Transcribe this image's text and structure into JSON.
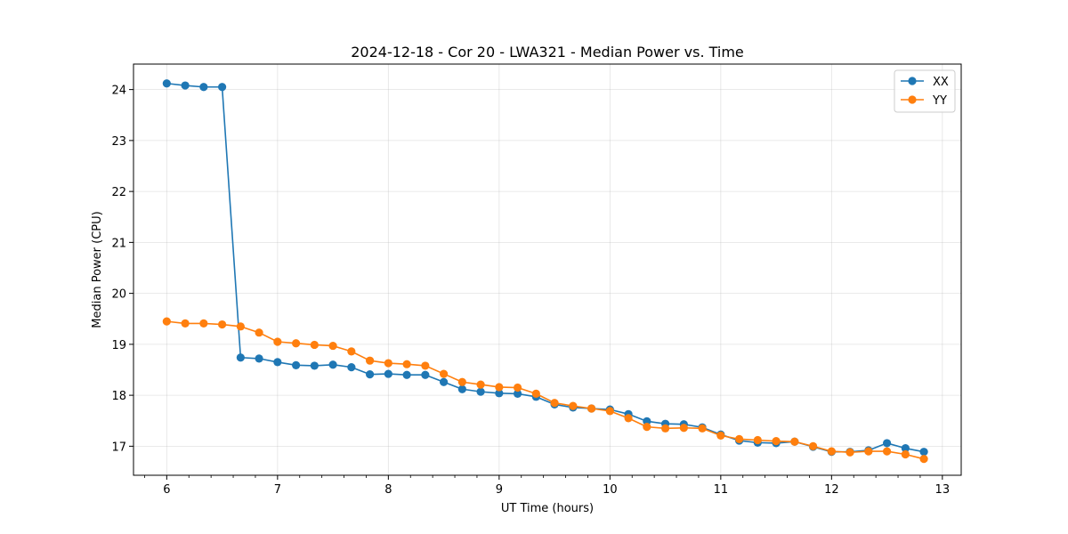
{
  "chart_data": {
    "type": "line",
    "title": "2024-12-18 - Cor 20 - LWA321 - Median Power vs. Time",
    "xlabel": "UT Time (hours)",
    "ylabel": "Median Power (CPU)",
    "xlim": [
      5.7,
      13.17
    ],
    "ylim": [
      16.43,
      24.5
    ],
    "xticks": [
      6,
      7,
      8,
      9,
      10,
      11,
      12,
      13
    ],
    "xtick_labels": [
      "6",
      "7",
      "8",
      "9",
      "10",
      "11",
      "12",
      "13"
    ],
    "yticks": [
      17,
      18,
      19,
      20,
      21,
      22,
      23,
      24
    ],
    "ytick_labels": [
      "17",
      "18",
      "19",
      "20",
      "21",
      "22",
      "23",
      "24"
    ],
    "grid": true,
    "legend_position": "top-right",
    "x": [
      6.0,
      6.1667,
      6.3333,
      6.5,
      6.6667,
      6.8333,
      7.0,
      7.1667,
      7.3333,
      7.5,
      7.6667,
      7.8333,
      8.0,
      8.1667,
      8.3333,
      8.5,
      8.6667,
      8.8333,
      9.0,
      9.1667,
      9.3333,
      9.5,
      9.6667,
      9.8333,
      10.0,
      10.1667,
      10.3333,
      10.5,
      10.6667,
      10.8333,
      11.0,
      11.1667,
      11.3333,
      11.5,
      11.6667,
      11.8333,
      12.0,
      12.1667,
      12.3333,
      12.5,
      12.6667,
      12.8333
    ],
    "series": [
      {
        "name": "XX",
        "color": "#1f77b4",
        "values": [
          24.12,
          24.08,
          24.05,
          24.05,
          18.74,
          18.72,
          18.65,
          18.59,
          18.58,
          18.6,
          18.55,
          18.41,
          18.42,
          18.4,
          18.4,
          18.26,
          18.12,
          18.07,
          18.04,
          18.03,
          17.97,
          17.82,
          17.76,
          17.74,
          17.72,
          17.63,
          17.49,
          17.44,
          17.43,
          17.37,
          17.23,
          17.11,
          17.07,
          17.06,
          17.09,
          16.99,
          16.89,
          16.89,
          16.92,
          17.06,
          16.96,
          16.89
        ]
      },
      {
        "name": "YY",
        "color": "#ff7f0e",
        "values": [
          19.45,
          19.41,
          19.41,
          19.39,
          19.35,
          19.23,
          19.05,
          19.02,
          18.99,
          18.97,
          18.86,
          18.68,
          18.63,
          18.61,
          18.58,
          18.42,
          18.26,
          18.21,
          18.16,
          18.15,
          18.03,
          17.85,
          17.79,
          17.74,
          17.69,
          17.55,
          17.38,
          17.35,
          17.36,
          17.35,
          17.21,
          17.14,
          17.12,
          17.1,
          17.09,
          17.0,
          16.9,
          16.88,
          16.9,
          16.9,
          16.84,
          16.75
        ]
      }
    ]
  }
}
